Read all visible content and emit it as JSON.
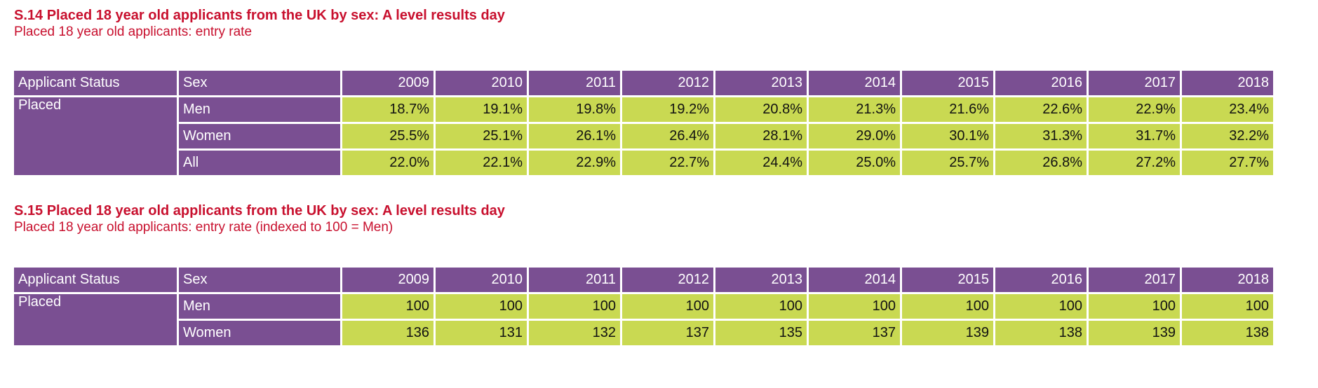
{
  "tables": [
    {
      "title": "S.14 Placed 18 year old applicants from the UK by sex: A level results day",
      "subtitle": "Placed 18 year old applicants: entry rate",
      "headers": [
        "Applicant Status",
        "Sex",
        "2009",
        "2010",
        "2011",
        "2012",
        "2013",
        "2014",
        "2015",
        "2016",
        "2017",
        "2018"
      ],
      "status": "Placed",
      "rows": [
        {
          "sex": "Men",
          "values": [
            "18.7%",
            "19.1%",
            "19.8%",
            "19.2%",
            "20.8%",
            "21.3%",
            "21.6%",
            "22.6%",
            "22.9%",
            "23.4%"
          ]
        },
        {
          "sex": "Women",
          "values": [
            "25.5%",
            "25.1%",
            "26.1%",
            "26.4%",
            "28.1%",
            "29.0%",
            "30.1%",
            "31.3%",
            "31.7%",
            "32.2%"
          ]
        },
        {
          "sex": "All",
          "values": [
            "22.0%",
            "22.1%",
            "22.9%",
            "22.7%",
            "24.4%",
            "25.0%",
            "25.7%",
            "26.8%",
            "27.2%",
            "27.7%"
          ]
        }
      ]
    },
    {
      "title": "S.15 Placed 18 year old applicants from the UK by sex: A level results day",
      "subtitle": "Placed 18 year old applicants: entry rate (indexed to 100 = Men)",
      "headers": [
        "Applicant Status",
        "Sex",
        "2009",
        "2010",
        "2011",
        "2012",
        "2013",
        "2014",
        "2015",
        "2016",
        "2017",
        "2018"
      ],
      "status": "Placed",
      "rows": [
        {
          "sex": "Men",
          "values": [
            "100",
            "100",
            "100",
            "100",
            "100",
            "100",
            "100",
            "100",
            "100",
            "100"
          ]
        },
        {
          "sex": "Women",
          "values": [
            "136",
            "131",
            "132",
            "137",
            "135",
            "137",
            "139",
            "138",
            "139",
            "138"
          ]
        }
      ]
    }
  ],
  "colors": {
    "title": "#c8102e",
    "header_bg": "#7a4f92",
    "value_bg": "#c9d952"
  }
}
